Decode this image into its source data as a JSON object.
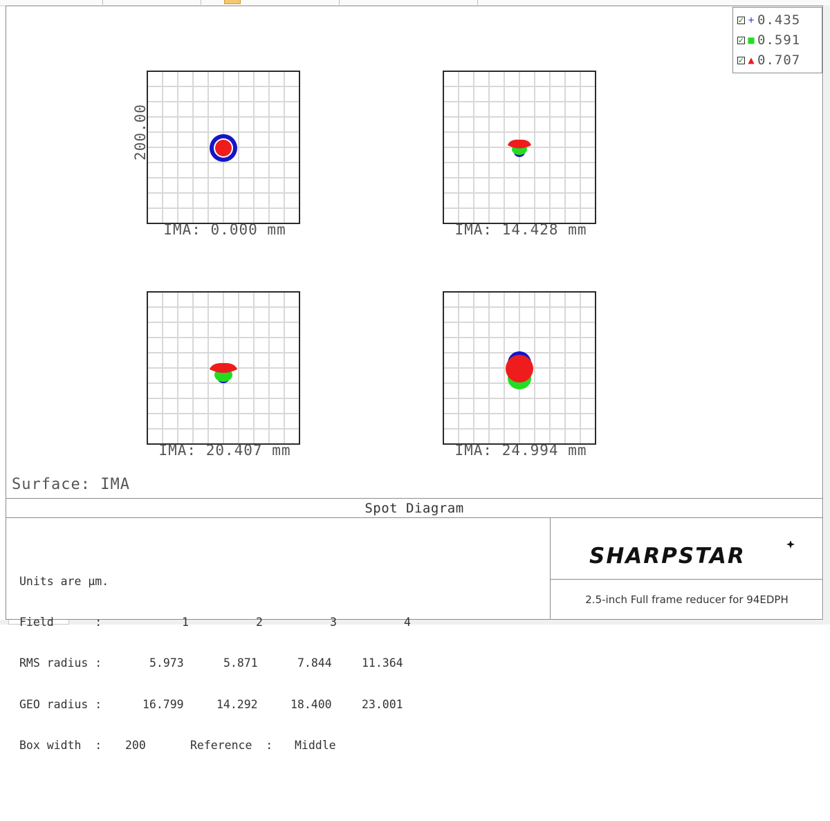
{
  "legend": {
    "entries": [
      {
        "value": "0.435",
        "marker": "+",
        "marker_icon": "plus-marker-icon",
        "color": "#1515c8"
      },
      {
        "value": "0.591",
        "marker": "■",
        "marker_icon": "square-marker-icon",
        "color": "#22dd22"
      },
      {
        "value": "0.707",
        "marker": "▲",
        "marker_icon": "triangle-marker-icon",
        "color": "#ee1c1c"
      }
    ]
  },
  "scale_label": "200.00",
  "surface_label": "Surface: IMA",
  "title": "Spot Diagram",
  "fields": [
    {
      "ima_label": "IMA: 0.000 mm"
    },
    {
      "ima_label": "IMA: 14.428 mm"
    },
    {
      "ima_label": "IMA: 20.407 mm"
    },
    {
      "ima_label": "IMA: 24.994 mm"
    }
  ],
  "stats": {
    "units_line": "Units are µm.",
    "field_label": "Field      :",
    "field_numbers": [
      "1",
      "2",
      "3",
      "4"
    ],
    "rms_label": "RMS radius :",
    "rms_values": [
      "5.973",
      "5.871",
      "7.844",
      "11.364"
    ],
    "geo_label": "GEO radius :",
    "geo_values": [
      "16.799",
      "14.292",
      "18.400",
      "23.001"
    ],
    "box_width_label": "Box width  :",
    "box_width_value": "200",
    "reference_label": "Reference  :",
    "reference_value": "Middle"
  },
  "brand": {
    "logo_text": "SHARPSTAR"
  },
  "design_title": "2.5-inch Full frame reducer for 94EDPH",
  "colors": {
    "blue": "#1515c8",
    "green": "#22dd22",
    "red": "#ee1c1c",
    "grid": "#d8d8d8",
    "frame": "#2a2a2a"
  }
}
